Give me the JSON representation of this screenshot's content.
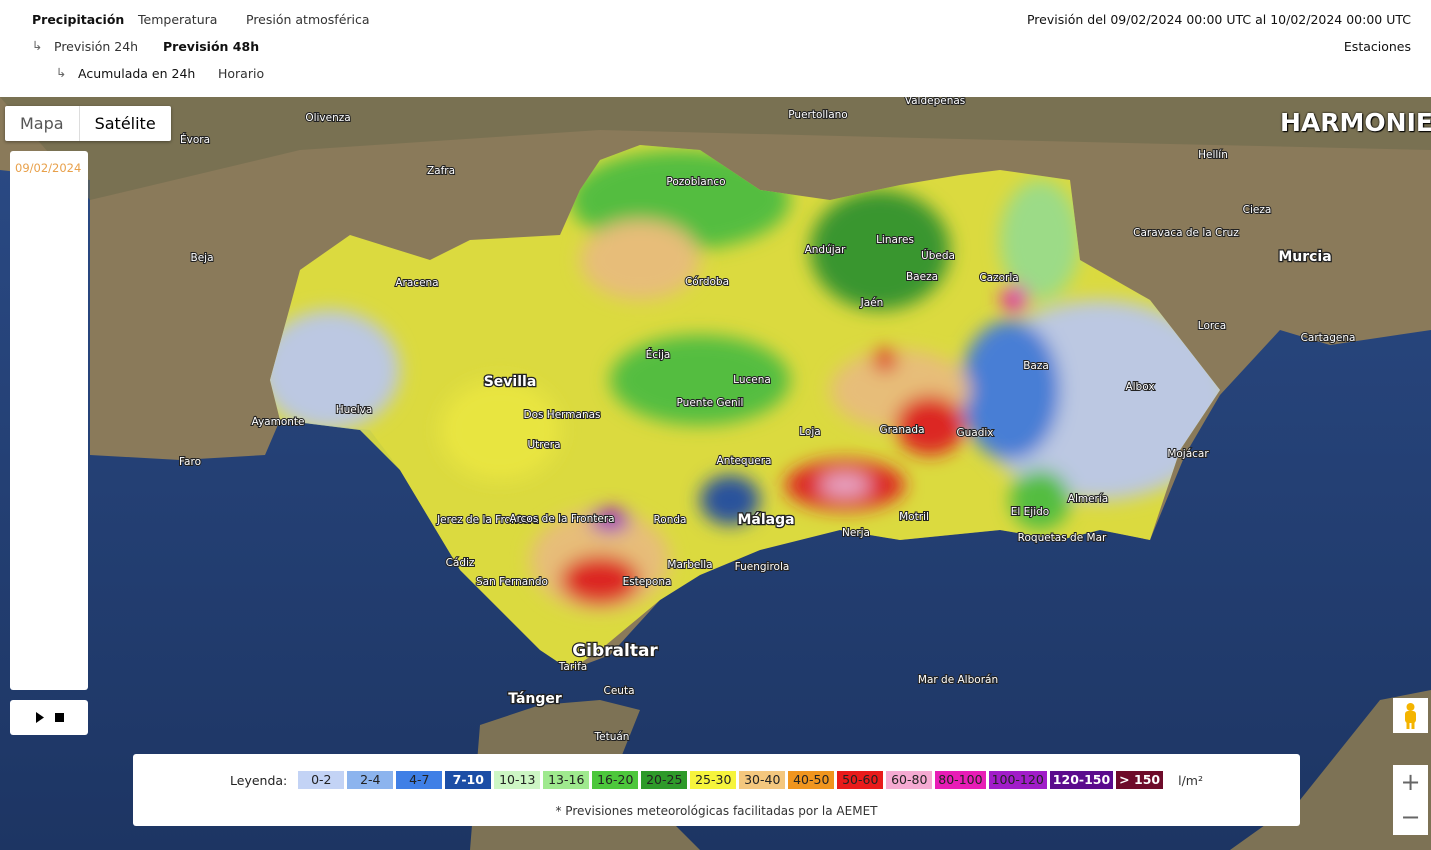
{
  "nav": {
    "tabs": [
      "Precipitación",
      "Temperatura",
      "Presión atmosférica"
    ],
    "sub1": [
      "Previsión 24h",
      "Previsión 48h"
    ],
    "sub2": [
      "Acumulada en 24h",
      "Horario"
    ],
    "arrow": "↳",
    "forecast": "Previsión del 09/02/2024 00:00 UTC al 10/02/2024 00:00 UTC",
    "stations": "Estaciones"
  },
  "map": {
    "types": [
      "Mapa",
      "Satélite"
    ],
    "date": "09/02/2024",
    "model": "HARMONIE",
    "zoom": [
      "+",
      "−"
    ],
    "places": [
      "Sevilla",
      "Córdoba",
      "Málaga",
      "Granada",
      "Jaén",
      "Almería",
      "Huelva",
      "Cádiz",
      "Gibraltar",
      "Tánger",
      "Murcia",
      "Cartagena",
      "Motril",
      "Marbella",
      "Jerez de la Frontera",
      "Dos Hermanas",
      "Écija",
      "Lucena",
      "Antequera",
      "Loja",
      "Guadix",
      "Baza",
      "Úbeda",
      "Linares",
      "Baeza",
      "Andújar",
      "Estepona",
      "Fuengirola",
      "Nerja",
      "El Ejido",
      "Mojácar",
      "Ceuta",
      "Tetuán",
      "Puente Genil",
      "Utrera",
      "Ayamonte",
      "Faro",
      "Beja",
      "Évora",
      "Olivenza",
      "Zafra",
      "Puertollano",
      "Valdepeñas",
      "Lorca",
      "Caravaca de la Cruz",
      "Hellín",
      "Cieza",
      "Mar de Alborán",
      "Aracena",
      "Ronda",
      "Tarifa",
      "Pozoblanco",
      "Albox",
      "Cazorla",
      "Roquetas de Mar",
      "San Fernando",
      "Arcos de la Frontera"
    ]
  },
  "legend": {
    "title": "Leyenda:",
    "items": [
      {
        "label": "0-2",
        "color": "#c3d3f5"
      },
      {
        "label": "2-4",
        "color": "#8cb4ee"
      },
      {
        "label": "4-7",
        "color": "#3f7fe6"
      },
      {
        "label": "7-10",
        "color": "#1c4ea6"
      },
      {
        "label": "10-13",
        "color": "#cdf6c4"
      },
      {
        "label": "13-16",
        "color": "#9fe98e"
      },
      {
        "label": "16-20",
        "color": "#4dc73c"
      },
      {
        "label": "20-25",
        "color": "#2e9a2a"
      },
      {
        "label": "25-30",
        "color": "#f6f43c"
      },
      {
        "label": "30-40",
        "color": "#f4c77e"
      },
      {
        "label": "40-50",
        "color": "#f0951e"
      },
      {
        "label": "50-60",
        "color": "#e81b1b"
      },
      {
        "label": "60-80",
        "color": "#f5aad2"
      },
      {
        "label": "80-100",
        "color": "#e81db6"
      },
      {
        "label": "100-120",
        "color": "#a11dc9"
      },
      {
        "label": "120-150",
        "color": "#5b0b8d"
      },
      {
        "label": "> 150",
        "color": "#6e0b2a"
      }
    ],
    "unit": "l/m²",
    "note": "* Previsiones meteorológicas facilitadas por la AEMET"
  }
}
